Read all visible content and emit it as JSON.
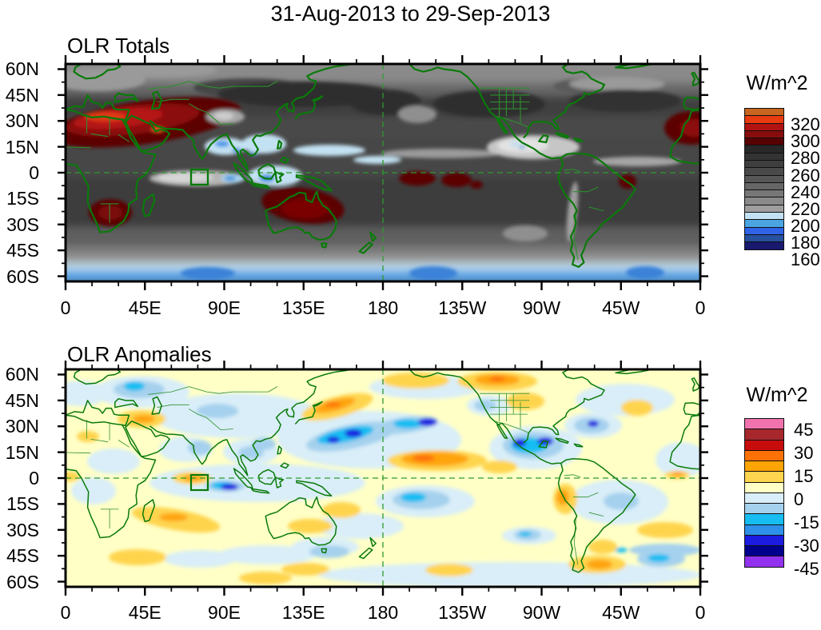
{
  "page_title": "31-Aug-2013 to 29-Sep-2013",
  "colors": {
    "coastline": "#0a7a0a",
    "country_border": "#2e8f2e",
    "dashed_reference_line": "#2e9a2e",
    "frame": "#000000",
    "background": "#ffffff"
  },
  "chart_data": [
    {
      "type": "heatmap",
      "title": "OLR Totals",
      "units_label": "W/m^2",
      "projection": "global equirectangular, longitude 0-360E, latitude ~63N-63S",
      "x_tick_labels": [
        "0",
        "45E",
        "90E",
        "135E",
        "180",
        "135W",
        "90W",
        "45W",
        "0"
      ],
      "y_tick_labels": [
        "60N",
        "45N",
        "30N",
        "15N",
        "0",
        "15S",
        "30S",
        "45S",
        "60S"
      ],
      "grid": "off",
      "reference_lines": [
        "dashed green equator line",
        "dashed green 180 meridian"
      ],
      "region_box": "green rectangle ~70E-80E, 0-7.5S",
      "colorbar": {
        "position": "right",
        "labels": [
          "320",
          "300",
          "280",
          "260",
          "240",
          "220",
          "200",
          "180",
          "160"
        ],
        "label_boundaries": [
          2,
          4,
          6,
          8,
          10,
          12,
          14,
          16,
          18
        ],
        "colors": [
          "#c8651f",
          "#e83c10",
          "#b31212",
          "#870d0d",
          "#560202",
          "#282828",
          "#333333",
          "#3e3e3e",
          "#4a4a4a",
          "#575757",
          "#666666",
          "#777777",
          "#8a8a8a",
          "#9e9e9e",
          "#c2e1f2",
          "#4aa5e0",
          "#2f64e8",
          "#27509e",
          "#191970"
        ]
      },
      "features": [
        {
          "region": "Sahara / Arabian Peninsula / Middle East",
          "value_wm2": "290-330 (very high OLR)"
        },
        {
          "region": "Southern Africa (Kalahari)",
          "value_wm2": "280-300"
        },
        {
          "region": "Australia interior extending to Coral Sea",
          "value_wm2": "280-300"
        },
        {
          "region": "Equatorial central Pacific just south of equator",
          "value_wm2": "280-290"
        },
        {
          "region": "Northeast Brazil coast",
          "value_wm2": "280-290"
        },
        {
          "region": "Bay of Bengal / South China Sea / Maritime Continent",
          "value_wm2": "160-200 (deep convection)"
        },
        {
          "region": "Equatorial Indian Ocean 60-100E",
          "value_wm2": "180-210"
        },
        {
          "region": "Central America / East Pacific ITCZ",
          "value_wm2": "180-210"
        },
        {
          "region": "Tibetan Plateau",
          "value_wm2": "200-220"
        },
        {
          "region": "Southern Ocean 55-65S",
          "value_wm2": "150-180"
        },
        {
          "region": "Midlatitude storm tracks 40-55N",
          "value_wm2": "220-240"
        }
      ]
    },
    {
      "type": "heatmap",
      "title": "OLR Anomalies",
      "units_label": "W/m^2",
      "projection": "global equirectangular, longitude 0-360E, latitude ~63N-63S",
      "x_tick_labels": [
        "0",
        "45E",
        "90E",
        "135E",
        "180",
        "135W",
        "90W",
        "45W",
        "0"
      ],
      "y_tick_labels": [
        "60N",
        "45N",
        "30N",
        "15N",
        "0",
        "15S",
        "30S",
        "45S",
        "60S"
      ],
      "grid": "off",
      "reference_lines": [
        "dashed green equator line",
        "dashed green 180 meridian"
      ],
      "region_box": "green rectangle ~70E-80E, 0-7.5S",
      "colorbar": {
        "position": "right",
        "labels": [
          "45",
          "30",
          "15",
          "0",
          "-15",
          "-30",
          "-45"
        ],
        "label_boundaries": [
          1,
          3,
          5,
          7,
          9,
          11,
          13
        ],
        "colors": [
          "#f272ae",
          "#a6282d",
          "#c80c0c",
          "#fd7107",
          "#ffa405",
          "#ffd44e",
          "#ffffc6",
          "#d9eef8",
          "#a5d1ee",
          "#17bdf2",
          "#2e90e8",
          "#1c1ce0",
          "#00008c",
          "#9232ee"
        ]
      },
      "features": [
        {
          "region": "Northwest Pacific 20-35N, 140E-170W",
          "anomaly_wm2": "-30 to -45"
        },
        {
          "region": "Mexico / Gulf of Mexico / Caribbean",
          "anomaly_wm2": "-30 to -45"
        },
        {
          "region": "Scandinavia / northeast Europe",
          "anomaly_wm2": "-15 to -30"
        },
        {
          "region": "Equatorial Indian Ocean east of box (80-100E)",
          "anomaly_wm2": "-15 to -30"
        },
        {
          "region": "India / Arabian Sea",
          "anomaly_wm2": "-15"
        },
        {
          "region": "Mid North Atlantic near 30N",
          "anomaly_wm2": "-15 to -30"
        },
        {
          "region": "Southeast Pacific 10-20S",
          "anomaly_wm2": "-15"
        },
        {
          "region": "Central North Pacific 5-15N, 180-140W",
          "anomaly_wm2": "+15 to +30"
        },
        {
          "region": "East of Japan 38-45N",
          "anomaly_wm2": "+15 to +30"
        },
        {
          "region": "Northern Canada",
          "anomaly_wm2": "+15 to +30"
        },
        {
          "region": "Equatorial Indian Ocean west of box (55-75E)",
          "anomaly_wm2": "+15 to +30"
        },
        {
          "region": "South Indian Ocean 15-25S",
          "anomaly_wm2": "+15"
        },
        {
          "region": "Middle East",
          "anomaly_wm2": "+15"
        },
        {
          "region": "South Atlantic 35-50S and Patagonia",
          "anomaly_wm2": "+15"
        }
      ]
    }
  ]
}
